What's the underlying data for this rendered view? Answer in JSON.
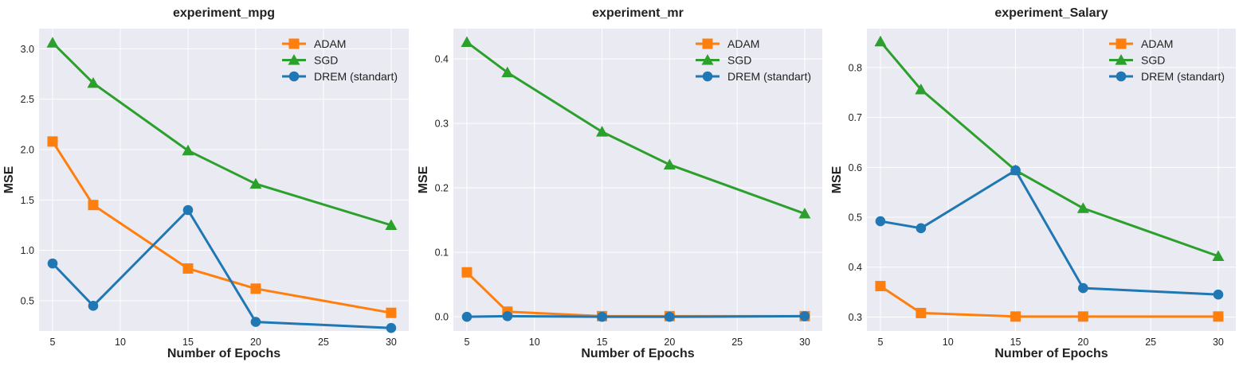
{
  "chart_data": [
    {
      "type": "line",
      "title": "experiment_mpg",
      "xlabel": "Number of Epochs",
      "ylabel": "MSE",
      "x": [
        5,
        8,
        15,
        20,
        30
      ],
      "xlim": [
        4,
        31.3
      ],
      "ylim": [
        0.2,
        3.2
      ],
      "xticks": [
        5,
        10,
        15,
        20,
        25,
        30
      ],
      "yticks": [
        0.5,
        1.0,
        1.5,
        2.0,
        2.5,
        3.0
      ],
      "ytick_labels": [
        "0.5",
        "1.0",
        "1.5",
        "2.0",
        "2.5",
        "3.0"
      ],
      "grid": true,
      "legend_position": "top-right",
      "series": [
        {
          "name": "ADAM",
          "color": "#ff7f0e",
          "marker": "square",
          "values": [
            2.08,
            1.45,
            0.82,
            0.62,
            0.38
          ]
        },
        {
          "name": "SGD",
          "color": "#2ca02c",
          "marker": "triangle",
          "values": [
            3.06,
            2.66,
            1.99,
            1.66,
            1.25
          ]
        },
        {
          "name": "DREM (standart)",
          "color": "#1f77b4",
          "marker": "circle",
          "values": [
            0.87,
            0.45,
            1.4,
            0.29,
            0.23
          ]
        }
      ]
    },
    {
      "type": "line",
      "title": "experiment_mr",
      "xlabel": "Number of Epochs",
      "ylabel": "MSE",
      "x": [
        5,
        8,
        15,
        20,
        30
      ],
      "xlim": [
        4,
        31.3
      ],
      "ylim": [
        -0.022,
        0.447
      ],
      "xticks": [
        5,
        10,
        15,
        20,
        25,
        30
      ],
      "yticks": [
        0.0,
        0.1,
        0.2,
        0.3,
        0.4
      ],
      "ytick_labels": [
        "0.0",
        "0.1",
        "0.2",
        "0.3",
        "0.4"
      ],
      "grid": true,
      "legend_position": "top-right",
      "series": [
        {
          "name": "ADAM",
          "color": "#ff7f0e",
          "marker": "square",
          "values": [
            0.069,
            0.008,
            0.001,
            0.001,
            0.001
          ]
        },
        {
          "name": "SGD",
          "color": "#2ca02c",
          "marker": "triangle",
          "values": [
            0.426,
            0.379,
            0.287,
            0.236,
            0.16
          ]
        },
        {
          "name": "DREM (standart)",
          "color": "#1f77b4",
          "marker": "circle",
          "values": [
            0.0,
            0.001,
            0.0,
            0.0,
            0.001
          ]
        }
      ]
    },
    {
      "type": "line",
      "title": "experiment_Salary",
      "xlabel": "Number of Epochs",
      "ylabel": "MSE",
      "x": [
        5,
        8,
        15,
        20,
        30
      ],
      "xlim": [
        4,
        31.3
      ],
      "ylim": [
        0.272,
        0.878
      ],
      "xticks": [
        5,
        10,
        15,
        20,
        25,
        30
      ],
      "yticks": [
        0.3,
        0.4,
        0.5,
        0.6,
        0.7,
        0.8
      ],
      "ytick_labels": [
        "0.3",
        "0.4",
        "0.5",
        "0.6",
        "0.7",
        "0.8"
      ],
      "grid": true,
      "legend_position": "top-right",
      "series": [
        {
          "name": "ADAM",
          "color": "#ff7f0e",
          "marker": "square",
          "values": [
            0.362,
            0.308,
            0.301,
            0.301,
            0.301
          ]
        },
        {
          "name": "SGD",
          "color": "#2ca02c",
          "marker": "triangle",
          "values": [
            0.852,
            0.756,
            0.594,
            0.518,
            0.422
          ]
        },
        {
          "name": "DREM (standart)",
          "color": "#1f77b4",
          "marker": "circle",
          "values": [
            0.492,
            0.478,
            0.594,
            0.358,
            0.345
          ]
        }
      ]
    }
  ]
}
